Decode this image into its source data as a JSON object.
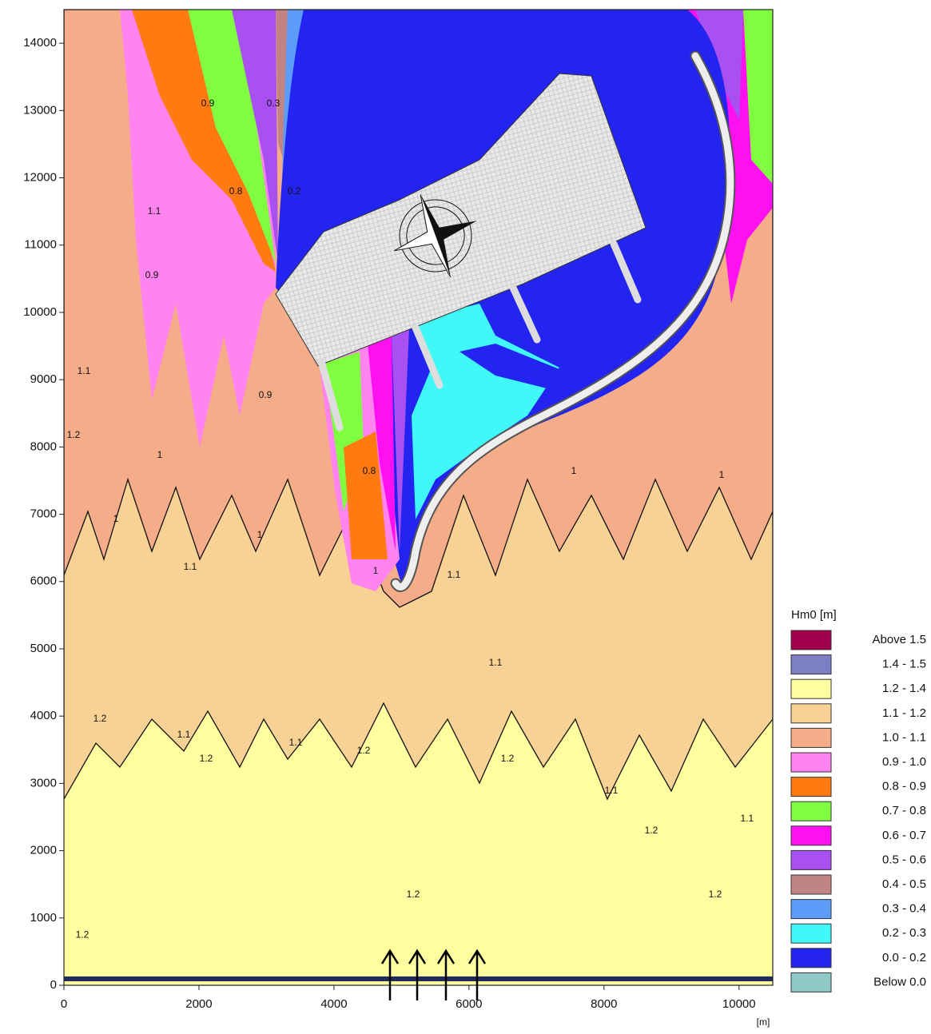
{
  "chart_data": {
    "type": "contour",
    "x_label": "[m]",
    "xlim": [
      0,
      10500
    ],
    "ylim": [
      0,
      14500
    ],
    "xticks": [
      0,
      2000,
      4000,
      6000,
      8000,
      10000
    ],
    "yticks": [
      0,
      1000,
      2000,
      3000,
      4000,
      5000,
      6000,
      7000,
      8000,
      9000,
      10000,
      11000,
      12000,
      13000,
      14000
    ],
    "legend": {
      "title": "Hm0 [m]",
      "position": "right",
      "entries": [
        {
          "label": "Above 1.5",
          "color": "#a0004c"
        },
        {
          "label": "1.4 - 1.5",
          "color": "#7b80c4"
        },
        {
          "label": "1.2 - 1.4",
          "color": "#ffffa0"
        },
        {
          "label": "1.1 - 1.2",
          "color": "#f7d294"
        },
        {
          "label": "1.0 - 1.1",
          "color": "#f5ac88"
        },
        {
          "label": "0.9 - 1.0",
          "color": "#ff84f0"
        },
        {
          "label": "0.8 - 0.9",
          "color": "#ff7a10"
        },
        {
          "label": "0.7 - 0.8",
          "color": "#80ff40"
        },
        {
          "label": "0.6 - 0.7",
          "color": "#ff10f0"
        },
        {
          "label": "0.5 - 0.6",
          "color": "#a850f0"
        },
        {
          "label": "0.4 - 0.5",
          "color": "#c08484"
        },
        {
          "label": "0.3 - 0.4",
          "color": "#5c9cf8"
        },
        {
          "label": "0.2 - 0.3",
          "color": "#40f8f8"
        },
        {
          "label": "0.0 - 0.2",
          "color": "#2424f0"
        },
        {
          "label": "Below 0.0",
          "color": "#90c8c8"
        }
      ]
    },
    "contour_labels": [
      {
        "value": 1.2,
        "x": 272,
        "y": 745
      },
      {
        "value": 1.2,
        "x": 533,
        "y": 3955
      },
      {
        "value": 1.1,
        "x": 1776,
        "y": 3717
      },
      {
        "value": 1.2,
        "x": 2107,
        "y": 3361
      },
      {
        "value": 1.1,
        "x": 3433,
        "y": 3598
      },
      {
        "value": 1.2,
        "x": 4439,
        "y": 3479
      },
      {
        "value": 1.2,
        "x": 5173,
        "y": 1342
      },
      {
        "value": 1.1,
        "x": 6392,
        "y": 4786
      },
      {
        "value": 1.2,
        "x": 6570,
        "y": 3361
      },
      {
        "value": 1.1,
        "x": 8108,
        "y": 2886
      },
      {
        "value": 1.2,
        "x": 8700,
        "y": 2292
      },
      {
        "value": 1.2,
        "x": 9647,
        "y": 1342
      },
      {
        "value": 1.1,
        "x": 10120,
        "y": 2470
      },
      {
        "value": 1.0,
        "x": 769,
        "y": 6923
      },
      {
        "value": 1.0,
        "x": 2900,
        "y": 6686
      },
      {
        "value": 1.0,
        "x": 1420,
        "y": 7873
      },
      {
        "value": 1.1,
        "x": 1870,
        "y": 6211
      },
      {
        "value": 0.9,
        "x": 1302,
        "y": 10545
      },
      {
        "value": 0.8,
        "x": 2546,
        "y": 11792
      },
      {
        "value": 0.9,
        "x": 2131,
        "y": 13098
      },
      {
        "value": 0.3,
        "x": 3101,
        "y": 13098
      },
      {
        "value": 0.2,
        "x": 3409,
        "y": 11792
      },
      {
        "value": 0.9,
        "x": 2983,
        "y": 8764
      },
      {
        "value": 0.8,
        "x": 4522,
        "y": 7636
      },
      {
        "value": 1.0,
        "x": 4617,
        "y": 6151
      },
      {
        "value": 1.1,
        "x": 5776,
        "y": 6092
      },
      {
        "value": 1.0,
        "x": 7552,
        "y": 7636
      },
      {
        "value": 1.0,
        "x": 9742,
        "y": 7576
      },
      {
        "value": 1.1,
        "x": 296,
        "y": 9120
      },
      {
        "value": 1.2,
        "x": 142,
        "y": 8170
      },
      {
        "value": 1.1,
        "x": 1338,
        "y": 11495
      }
    ]
  }
}
